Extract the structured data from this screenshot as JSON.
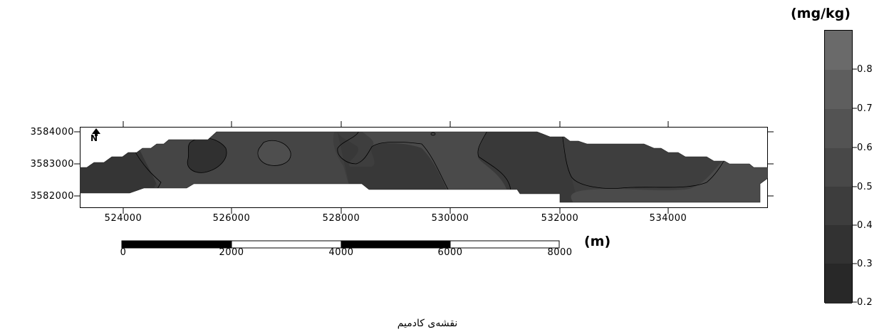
{
  "map": {
    "y_ticks": [
      "3584000",
      "3583000",
      "3582000"
    ],
    "x_ticks": [
      "524000",
      "526000",
      "528000",
      "530000",
      "532000",
      "534000"
    ],
    "north_arrow_label": "N"
  },
  "scale_bar": {
    "ticks": [
      "0",
      "2000",
      "4000",
      "6000",
      "8000"
    ],
    "unit": "(m)"
  },
  "legend": {
    "unit": "(mg/kg)",
    "ticks": [
      "0.8",
      "0.7",
      "0.6",
      "0.5",
      "0.4",
      "0.3",
      "0.2"
    ],
    "colors": [
      "#6a6a6a",
      "#5e5e5e",
      "#535353",
      "#484848",
      "#3d3d3d",
      "#323232",
      "#282828"
    ]
  },
  "caption": "نقشه‌ی کادمیم",
  "colors": {
    "low": "#2e2e2e",
    "mid_low": "#383838",
    "mid": "#424242",
    "mid_high": "#4c4c4c"
  }
}
